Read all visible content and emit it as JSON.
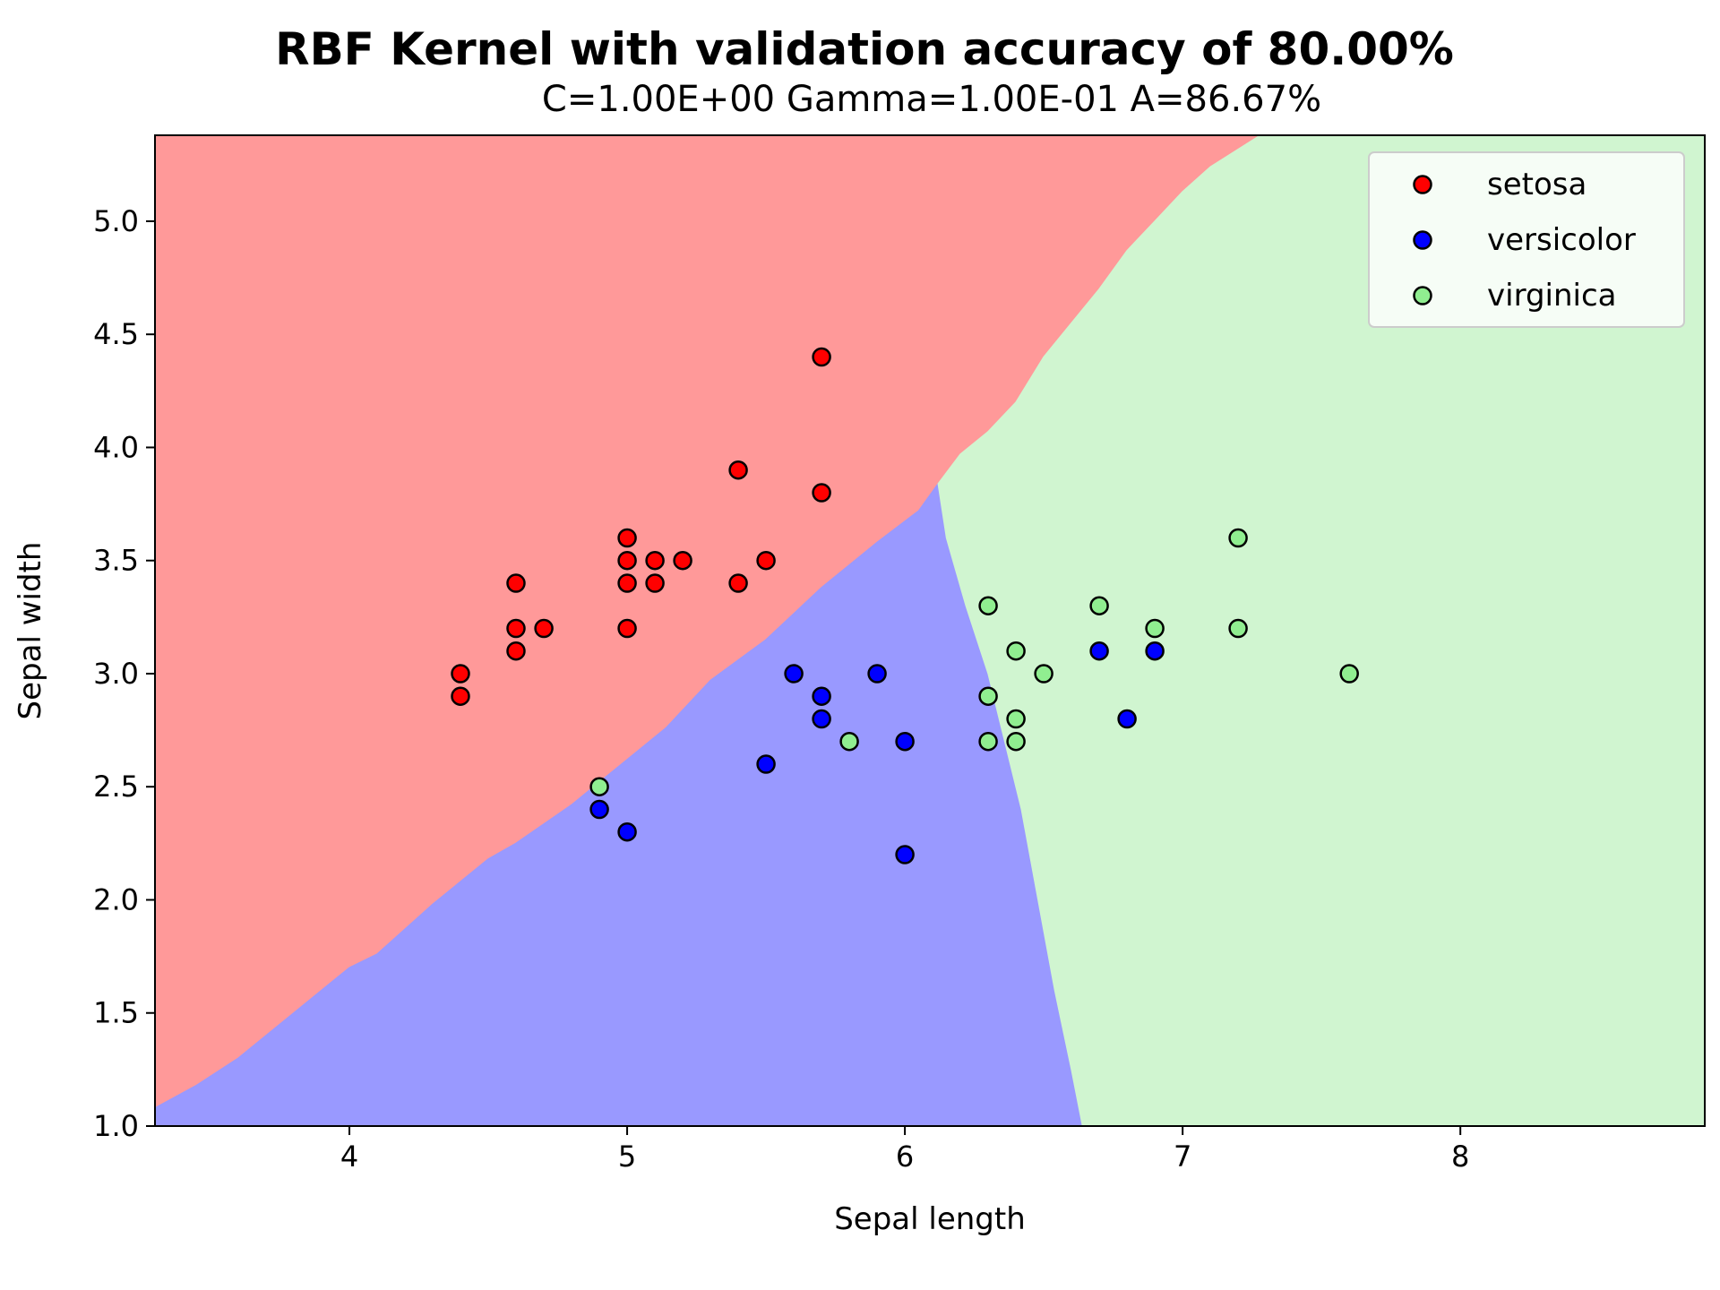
{
  "chart_data": {
    "type": "scatter",
    "title": "RBF Kernel with validation accuracy of 80.00%",
    "subtitle": "C=1.00E+00 Gamma=1.00E-01  A=86.67%",
    "xlabel": "Sepal length",
    "ylabel": "Sepal width",
    "xlim": [
      3.3,
      8.88
    ],
    "ylim": [
      1.0,
      5.38
    ],
    "xticks": [
      4,
      5,
      6,
      7,
      8
    ],
    "xtick_labels": [
      "4",
      "5",
      "6",
      "7",
      "8"
    ],
    "yticks": [
      1.0,
      1.5,
      2.0,
      2.5,
      3.0,
      3.5,
      4.0,
      4.5,
      5.0
    ],
    "ytick_labels": [
      "1.0",
      "1.5",
      "2.0",
      "2.5",
      "3.0",
      "3.5",
      "4.0",
      "4.5",
      "5.0"
    ],
    "grid": false,
    "legend_position": "top-right",
    "regions": [
      {
        "class": "setosa",
        "color": "#ff9999",
        "polygon": [
          [
            3.3,
            1.08
          ],
          [
            3.45,
            1.18
          ],
          [
            3.6,
            1.3
          ],
          [
            3.8,
            1.5
          ],
          [
            4.0,
            1.7
          ],
          [
            4.1,
            1.76
          ],
          [
            4.3,
            1.98
          ],
          [
            4.5,
            2.18
          ],
          [
            4.6,
            2.25
          ],
          [
            4.8,
            2.42
          ],
          [
            5.0,
            2.62
          ],
          [
            5.14,
            2.76
          ],
          [
            5.3,
            2.97
          ],
          [
            5.5,
            3.15
          ],
          [
            5.7,
            3.38
          ],
          [
            5.9,
            3.58
          ],
          [
            6.05,
            3.72
          ],
          [
            6.12,
            3.84
          ],
          [
            6.2,
            3.97
          ],
          [
            6.3,
            4.07
          ],
          [
            6.4,
            4.2
          ],
          [
            6.5,
            4.4
          ],
          [
            6.6,
            4.55
          ],
          [
            6.7,
            4.7
          ],
          [
            6.8,
            4.87
          ],
          [
            6.9,
            5.0
          ],
          [
            7.0,
            5.13
          ],
          [
            7.1,
            5.24
          ],
          [
            7.28,
            5.38
          ],
          [
            3.3,
            5.38
          ]
        ]
      },
      {
        "class": "versicolor",
        "color": "#9999ff",
        "polygon": [
          [
            3.3,
            1.0
          ],
          [
            3.3,
            1.08
          ],
          [
            3.45,
            1.18
          ],
          [
            3.6,
            1.3
          ],
          [
            3.8,
            1.5
          ],
          [
            4.0,
            1.7
          ],
          [
            4.1,
            1.76
          ],
          [
            4.3,
            1.98
          ],
          [
            4.5,
            2.18
          ],
          [
            4.6,
            2.25
          ],
          [
            4.8,
            2.42
          ],
          [
            5.0,
            2.62
          ],
          [
            5.14,
            2.76
          ],
          [
            5.3,
            2.97
          ],
          [
            5.5,
            3.15
          ],
          [
            5.7,
            3.38
          ],
          [
            5.9,
            3.58
          ],
          [
            6.05,
            3.72
          ],
          [
            6.12,
            3.84
          ],
          [
            6.15,
            3.6
          ],
          [
            6.22,
            3.3
          ],
          [
            6.3,
            3.0
          ],
          [
            6.36,
            2.7
          ],
          [
            6.42,
            2.4
          ],
          [
            6.48,
            2.0
          ],
          [
            6.54,
            1.6
          ],
          [
            6.6,
            1.25
          ],
          [
            6.64,
            1.0
          ]
        ]
      },
      {
        "class": "virginica",
        "color": "#d0f5d0",
        "polygon": [
          [
            6.64,
            1.0
          ],
          [
            6.6,
            1.25
          ],
          [
            6.54,
            1.6
          ],
          [
            6.48,
            2.0
          ],
          [
            6.42,
            2.4
          ],
          [
            6.36,
            2.7
          ],
          [
            6.3,
            3.0
          ],
          [
            6.22,
            3.3
          ],
          [
            6.15,
            3.6
          ],
          [
            6.12,
            3.84
          ],
          [
            6.2,
            3.97
          ],
          [
            6.3,
            4.07
          ],
          [
            6.4,
            4.2
          ],
          [
            6.5,
            4.4
          ],
          [
            6.6,
            4.55
          ],
          [
            6.7,
            4.7
          ],
          [
            6.8,
            4.87
          ],
          [
            6.9,
            5.0
          ],
          [
            7.0,
            5.13
          ],
          [
            7.1,
            5.24
          ],
          [
            7.28,
            5.38
          ],
          [
            8.88,
            5.38
          ],
          [
            8.88,
            1.0
          ]
        ]
      }
    ],
    "series": [
      {
        "name": "setosa",
        "color": "#ff0000",
        "points": [
          [
            4.4,
            3.0
          ],
          [
            4.4,
            2.9
          ],
          [
            4.6,
            3.4
          ],
          [
            4.6,
            3.2
          ],
          [
            4.6,
            3.1
          ],
          [
            4.7,
            3.2
          ],
          [
            5.0,
            3.6
          ],
          [
            5.0,
            3.5
          ],
          [
            5.0,
            3.4
          ],
          [
            5.0,
            3.2
          ],
          [
            5.1,
            3.5
          ],
          [
            5.1,
            3.4
          ],
          [
            5.2,
            3.5
          ],
          [
            5.4,
            3.9
          ],
          [
            5.4,
            3.4
          ],
          [
            5.5,
            3.5
          ],
          [
            5.7,
            4.4
          ],
          [
            5.7,
            3.8
          ]
        ]
      },
      {
        "name": "versicolor",
        "color": "#0000ff",
        "points": [
          [
            4.9,
            2.4
          ],
          [
            5.0,
            2.3
          ],
          [
            5.5,
            2.6
          ],
          [
            5.6,
            3.0
          ],
          [
            5.7,
            2.9
          ],
          [
            5.7,
            2.8
          ],
          [
            5.9,
            3.0
          ],
          [
            6.0,
            2.7
          ],
          [
            6.0,
            2.2
          ],
          [
            6.7,
            3.1
          ],
          [
            6.8,
            2.8
          ],
          [
            6.9,
            3.1
          ]
        ]
      },
      {
        "name": "virginica",
        "color": "#90ee90",
        "points": [
          [
            4.9,
            2.5
          ],
          [
            5.8,
            2.7
          ],
          [
            6.3,
            3.3
          ],
          [
            6.3,
            2.9
          ],
          [
            6.3,
            2.7
          ],
          [
            6.4,
            3.1
          ],
          [
            6.4,
            2.8
          ],
          [
            6.4,
            2.7
          ],
          [
            6.5,
            3.0
          ],
          [
            6.7,
            3.3
          ],
          [
            6.9,
            3.2
          ],
          [
            7.2,
            3.6
          ],
          [
            7.2,
            3.2
          ],
          [
            7.6,
            3.0
          ]
        ]
      }
    ]
  }
}
